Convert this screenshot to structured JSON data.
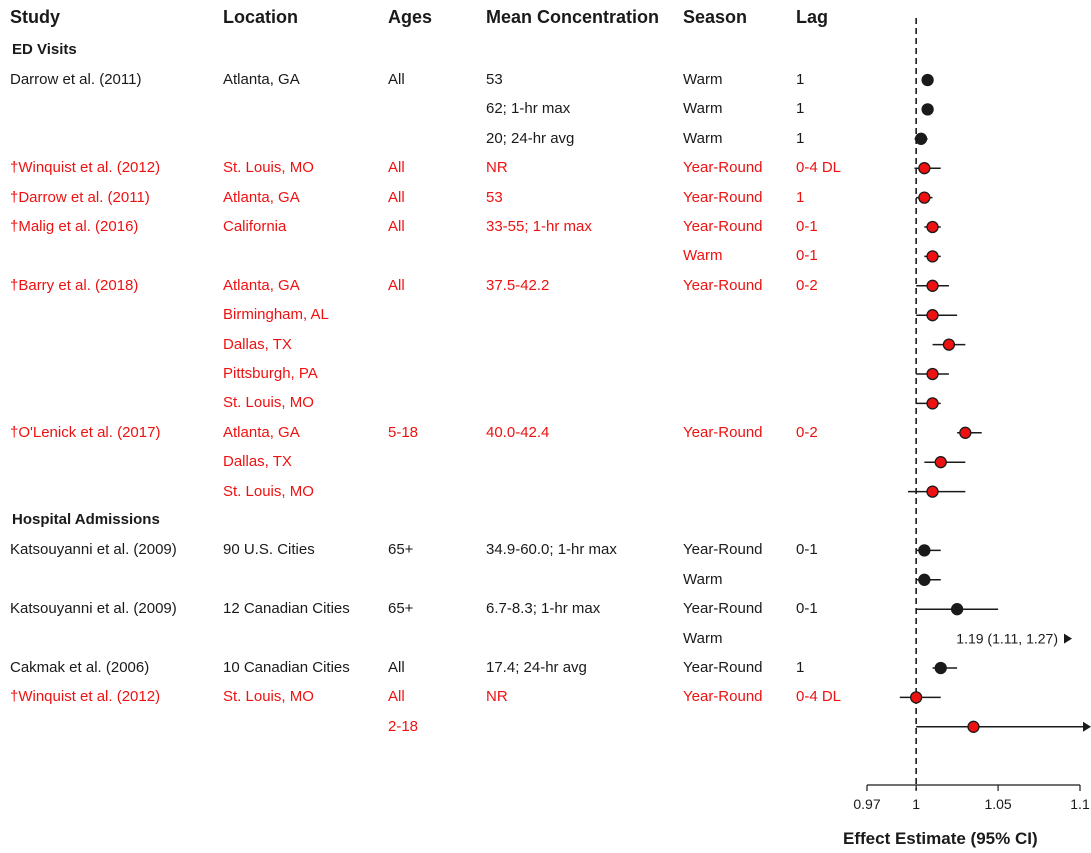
{
  "headers": {
    "study": "Study",
    "location": "Location",
    "ages": "Ages",
    "conc": "Mean Concentration",
    "season": "Season",
    "lag": "Lag"
  },
  "sections": {
    "ed": "ED Visits",
    "hosp": "Hospital Admissions"
  },
  "colors": {
    "highlight": "#ee1111",
    "default": "#1a1a1a"
  },
  "rows": [
    {
      "study": "Darrow et al. (2011)",
      "location": "Atlanta, GA",
      "ages": "All",
      "conc": "53",
      "season": "Warm",
      "lag": "1",
      "red": false
    },
    {
      "study": "",
      "location": "",
      "ages": "",
      "conc": "62; 1-hr max",
      "season": "Warm",
      "lag": "1",
      "red": false
    },
    {
      "study": "",
      "location": "",
      "ages": "",
      "conc": "20; 24-hr avg",
      "season": "Warm",
      "lag": "1",
      "red": false
    },
    {
      "study": "†Winquist et al. (2012)",
      "location": "St. Louis, MO",
      "ages": "All",
      "conc": "NR",
      "season": "Year-Round",
      "lag": "0-4 DL",
      "red": true
    },
    {
      "study": "†Darrow et al. (2011)",
      "location": "Atlanta, GA",
      "ages": "All",
      "conc": "53",
      "season": "Year-Round",
      "lag": "1",
      "red": true
    },
    {
      "study": "†Malig et al. (2016)",
      "location": "California",
      "ages": "All",
      "conc": "33-55; 1-hr max",
      "season": "Year-Round",
      "lag": "0-1",
      "red": true
    },
    {
      "study": "",
      "location": "",
      "ages": "",
      "conc": "",
      "season": "Warm",
      "lag": "0-1",
      "red": true
    },
    {
      "study": "†Barry et al. (2018)",
      "location": "Atlanta, GA",
      "ages": "All",
      "conc": "37.5-42.2",
      "season": "Year-Round",
      "lag": "0-2",
      "red": true
    },
    {
      "study": "",
      "location": "Birmingham, AL",
      "ages": "",
      "conc": "",
      "season": "",
      "lag": "",
      "red": true
    },
    {
      "study": "",
      "location": "Dallas, TX",
      "ages": "",
      "conc": "",
      "season": "",
      "lag": "",
      "red": true
    },
    {
      "study": "",
      "location": "Pittsburgh, PA",
      "ages": "",
      "conc": "",
      "season": "",
      "lag": "",
      "red": true
    },
    {
      "study": "",
      "location": "St. Louis, MO",
      "ages": "",
      "conc": "",
      "season": "",
      "lag": "",
      "red": true
    },
    {
      "study": "†O'Lenick et al. (2017)",
      "location": "Atlanta, GA",
      "ages": "5-18",
      "conc": "40.0-42.4",
      "season": "Year-Round",
      "lag": "0-2",
      "red": true
    },
    {
      "study": "",
      "location": "Dallas, TX",
      "ages": "",
      "conc": "",
      "season": "",
      "lag": "",
      "red": true
    },
    {
      "study": "",
      "location": "St. Louis, MO",
      "ages": "",
      "conc": "",
      "season": "",
      "lag": "",
      "red": true
    },
    {
      "study": "Katsouyanni et al. (2009)",
      "location": "90 U.S. Cities",
      "ages": "65+",
      "conc": "34.9-60.0; 1-hr max",
      "season": "Year-Round",
      "lag": "0-1",
      "red": false
    },
    {
      "study": "",
      "location": "",
      "ages": "",
      "conc": "",
      "season": "Warm",
      "lag": "",
      "red": false
    },
    {
      "study": "Katsouyanni et al. (2009)",
      "location": "12 Canadian Cities",
      "ages": "65+",
      "conc": "6.7-8.3; 1-hr max",
      "season": "Year-Round",
      "lag": "0-1",
      "red": false
    },
    {
      "study": "",
      "location": "",
      "ages": "",
      "conc": "",
      "season": "Warm",
      "lag": "",
      "red": false
    },
    {
      "study": "Cakmak et al. (2006)",
      "location": "10 Canadian Cities",
      "ages": "All",
      "conc": "17.4; 24-hr avg",
      "season": "Year-Round",
      "lag": "1",
      "red": false
    },
    {
      "study": "†Winquist et al. (2012)",
      "location": "St. Louis, MO",
      "ages": "All",
      "conc": "NR",
      "season": "Year-Round",
      "lag": "0-4 DL",
      "red": true
    },
    {
      "study": "",
      "location": "",
      "ages": "2-18",
      "conc": "",
      "season": "",
      "lag": "",
      "red": true
    }
  ],
  "chart_data": {
    "type": "forest",
    "xlabel": "Effect Estimate (95% CI)",
    "xlim": [
      0.97,
      1.1
    ],
    "xticks": [
      "0.97",
      "1",
      "1.05",
      "1.1"
    ],
    "xtick_values": [
      0.97,
      1.0,
      1.05,
      1.1
    ],
    "reference_line": 1.0,
    "estimates": [
      {
        "row": 0,
        "est": 1.007,
        "lo": 1.004,
        "hi": 1.01,
        "red": false
      },
      {
        "row": 1,
        "est": 1.007,
        "lo": 1.004,
        "hi": 1.01,
        "red": false
      },
      {
        "row": 2,
        "est": 1.003,
        "lo": 0.999,
        "hi": 1.007,
        "red": false
      },
      {
        "row": 3,
        "est": 1.005,
        "lo": 0.999,
        "hi": 1.015,
        "red": true
      },
      {
        "row": 4,
        "est": 1.005,
        "lo": 1.0,
        "hi": 1.01,
        "red": true
      },
      {
        "row": 5,
        "est": 1.01,
        "lo": 1.005,
        "hi": 1.015,
        "red": true
      },
      {
        "row": 6,
        "est": 1.01,
        "lo": 1.005,
        "hi": 1.015,
        "red": true
      },
      {
        "row": 7,
        "est": 1.01,
        "lo": 1.0,
        "hi": 1.02,
        "red": true
      },
      {
        "row": 8,
        "est": 1.01,
        "lo": 1.0,
        "hi": 1.025,
        "red": true
      },
      {
        "row": 9,
        "est": 1.02,
        "lo": 1.01,
        "hi": 1.03,
        "red": true
      },
      {
        "row": 10,
        "est": 1.01,
        "lo": 1.0,
        "hi": 1.02,
        "red": true
      },
      {
        "row": 11,
        "est": 1.01,
        "lo": 1.0,
        "hi": 1.015,
        "red": true
      },
      {
        "row": 12,
        "est": 1.03,
        "lo": 1.025,
        "hi": 1.04,
        "red": true
      },
      {
        "row": 13,
        "est": 1.015,
        "lo": 1.005,
        "hi": 1.03,
        "red": true
      },
      {
        "row": 14,
        "est": 1.01,
        "lo": 0.995,
        "hi": 1.03,
        "red": true
      },
      {
        "row": 15,
        "est": 1.005,
        "lo": 1.0,
        "hi": 1.015,
        "red": false
      },
      {
        "row": 16,
        "est": 1.005,
        "lo": 1.0,
        "hi": 1.015,
        "red": false
      },
      {
        "row": 17,
        "est": 1.025,
        "lo": 1.0,
        "hi": 1.05,
        "red": false
      },
      {
        "row": 19,
        "est": 1.015,
        "lo": 1.01,
        "hi": 1.025,
        "red": false
      },
      {
        "row": 20,
        "est": 1.0,
        "lo": 0.99,
        "hi": 1.015,
        "red": true
      },
      {
        "row": 21,
        "est": 1.035,
        "lo": 1.0,
        "hi": 1.05,
        "red": true,
        "arrow": true
      }
    ],
    "annotation": {
      "row": 18,
      "text": "1.19 (1.11, 1.27)",
      "arrow": true
    }
  }
}
